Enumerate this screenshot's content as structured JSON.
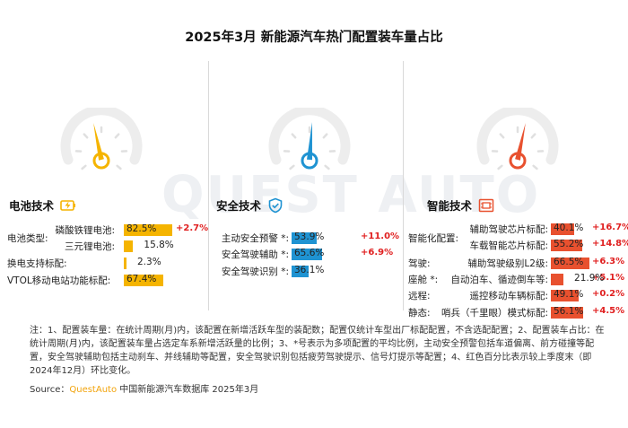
{
  "title": "2025年3月 新能源汽车热门配置装车量占比",
  "watermark": "QUEST AUTO",
  "sections": [
    {
      "title": "电池技术",
      "icon": "battery-bolt-icon",
      "color": "#f5b400",
      "groups": [
        {
          "label": "电池类型:",
          "rows": [
            0,
            1
          ]
        },
        {
          "label": "换电支持标配:",
          "rows": [
            2
          ]
        },
        {
          "label": "VTOL移动电站功能标配:",
          "rows": [
            3
          ]
        }
      ],
      "rows": [
        {
          "sub": "磷酸铁锂电池:",
          "value": 82.5,
          "text": "82.5%",
          "change": "+2.7%"
        },
        {
          "sub": "三元锂电池:",
          "value": 15.8,
          "text": "15.8%",
          "change": ""
        },
        {
          "sub": "",
          "value": 2.3,
          "text": "2.3%",
          "change": ""
        },
        {
          "sub": "",
          "value": 67.4,
          "text": "67.4%",
          "change": ""
        }
      ]
    },
    {
      "title": "安全技术",
      "icon": "shield-check-icon",
      "color": "#1f93d2",
      "groups": [],
      "rows": [
        {
          "sub": "主动安全预警 *:",
          "value": 53.9,
          "text": "53.9%",
          "change": "+11.0%"
        },
        {
          "sub": "安全驾驶辅助 *:",
          "value": 65.6,
          "text": "65.6%",
          "change": "+6.9%"
        },
        {
          "sub": "安全驾驶识别 *:",
          "value": 36.1,
          "text": "36.1%",
          "change": ""
        }
      ]
    },
    {
      "title": "智能技术",
      "icon": "chip-icon",
      "color": "#e8512f",
      "groups": [
        {
          "label": "智能化配置:",
          "rows": [
            0,
            1
          ]
        },
        {
          "label": "驾驶:",
          "rows": [
            2
          ]
        },
        {
          "label": "座舱 *:",
          "rows": [
            3
          ]
        },
        {
          "label": "远程:",
          "rows": [
            4
          ]
        },
        {
          "label": "静态:",
          "rows": [
            5
          ]
        }
      ],
      "rows": [
        {
          "sub": "辅助驾驶芯片标配:",
          "value": 40.1,
          "text": "40.1%",
          "change": "+16.7%"
        },
        {
          "sub": "车载智能芯片标配:",
          "value": 55.2,
          "text": "55.2%",
          "change": "+14.8%"
        },
        {
          "sub": "辅助驾驶级别L2级:",
          "value": 66.5,
          "text": "66.5%",
          "change": "+6.3%"
        },
        {
          "sub": "自动泊车、循迹倒车等:",
          "value": 21.9,
          "text": "21.9%",
          "change": "+5.1%"
        },
        {
          "sub": "遥控移动车辆标配:",
          "value": 49.1,
          "text": "49.1%",
          "change": "+0.2%"
        },
        {
          "sub": "哨兵（千里眼）模式标配:",
          "value": 56.1,
          "text": "56.1%",
          "change": "+4.5%"
        }
      ]
    }
  ],
  "chart_data": {
    "type": "bar",
    "unit": "%",
    "series": [
      {
        "name": "电池技术",
        "categories": [
          "磷酸铁锂电池",
          "三元锂电池",
          "换电支持标配",
          "VTOL移动电站功能标配"
        ],
        "values": [
          82.5,
          15.8,
          2.3,
          67.4
        ],
        "changes": [
          "+2.7%",
          "",
          "",
          ""
        ]
      },
      {
        "name": "安全技术",
        "categories": [
          "主动安全预警 *",
          "安全驾驶辅助 *",
          "安全驾驶识别 *"
        ],
        "values": [
          53.9,
          65.6,
          36.1
        ],
        "changes": [
          "+11.0%",
          "+6.9%",
          ""
        ]
      },
      {
        "name": "智能技术",
        "categories": [
          "辅助驾驶芯片标配",
          "车载智能芯片标配",
          "辅助驾驶级别L2级",
          "自动泊车、循迹倒车等",
          "遥控移动车辆标配",
          "哨兵（千里眼）模式标配"
        ],
        "values": [
          40.1,
          55.2,
          66.5,
          21.9,
          49.1,
          56.1
        ],
        "changes": [
          "+16.7%",
          "+14.8%",
          "+6.3%",
          "+5.1%",
          "+0.2%",
          "+4.5%"
        ]
      }
    ],
    "ylim": [
      0,
      100
    ]
  },
  "notes": "注：1、配置装车量：在统计周期(月)内，该配置在新增活跃车型的装配数；配置仅统计车型出厂标配配置，不含选配配置；2、配置装车占比：在统计周期(月)内，该配置装车量占选定车系新增活跃量的比例；3、*号表示为多项配置的平均比例，主动安全预警包括车道偏离、前方碰撞等配置，安全驾驶辅助包括主动刹车、并线辅助等配置，安全驾驶识别包括疲劳驾驶提示、信号灯提示等配置；4、红色百分比表示较上季度末（即2024年12月）环比变化。",
  "source": {
    "prefix": "Source：",
    "brand": "QuestAuto",
    "suffix": " 中国新能源汽车数据库 2025年3月"
  }
}
